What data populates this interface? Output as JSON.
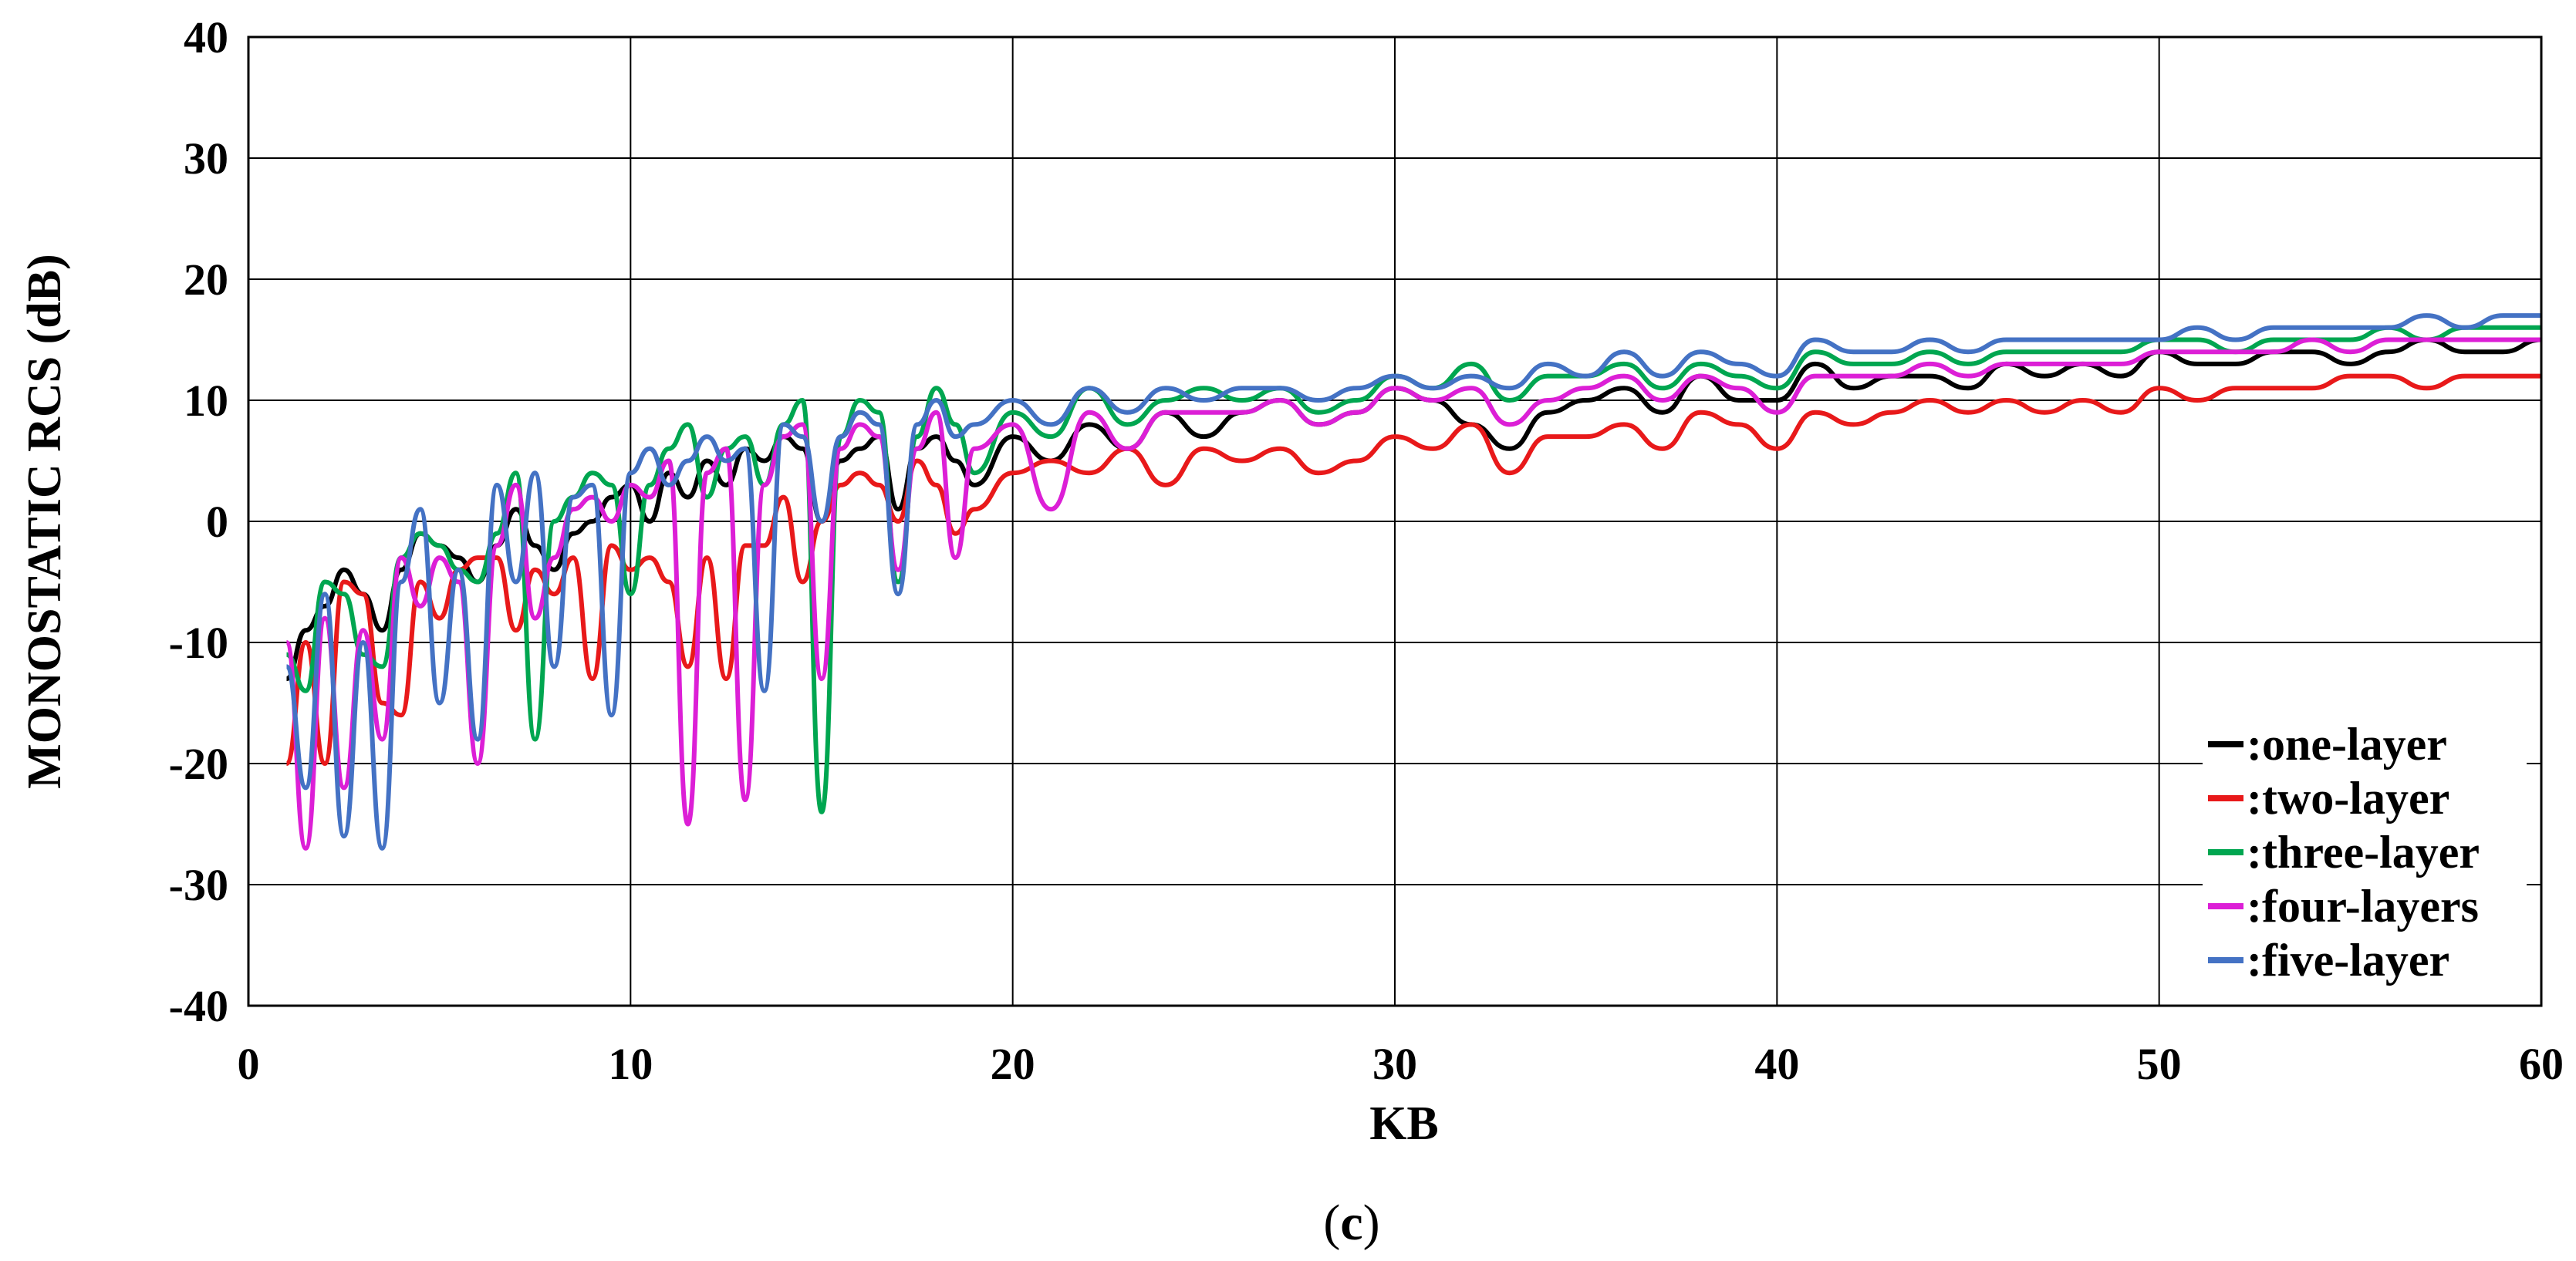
{
  "chart_data": {
    "type": "line",
    "title": "",
    "xlabel": "KB",
    "ylabel": "MONOSTATIC RCS (dB)",
    "xlim": [
      0,
      60
    ],
    "ylim": [
      -40,
      40
    ],
    "xticks": [
      0,
      10,
      20,
      30,
      40,
      50,
      60
    ],
    "yticks": [
      -40,
      -30,
      -20,
      -10,
      0,
      10,
      20,
      30,
      40
    ],
    "grid": true,
    "legend_position": "bottom-right",
    "caption": {
      "open": "(",
      "letter": "c",
      "close": ")"
    },
    "series": [
      {
        "name": ":one-layer",
        "color": "#000000",
        "x": [
          1,
          1.5,
          2,
          2.5,
          3,
          3.5,
          4,
          4.5,
          5,
          5.5,
          6,
          6.5,
          7,
          7.5,
          8,
          8.5,
          9,
          9.5,
          10,
          10.5,
          11,
          11.5,
          12,
          12.5,
          13,
          13.5,
          14,
          14.5,
          15,
          15.5,
          16,
          16.5,
          17,
          17.5,
          18,
          18.5,
          19,
          20,
          21,
          22,
          23,
          24,
          25,
          26,
          27,
          28,
          29,
          30,
          31,
          32,
          33,
          34,
          35,
          36,
          37,
          38,
          39,
          40,
          41,
          42,
          43,
          44,
          45,
          46,
          47,
          48,
          49,
          50,
          51,
          52,
          53,
          54,
          55,
          56,
          57,
          58,
          59,
          60
        ],
        "y": [
          -13,
          -9,
          -7,
          -4,
          -6,
          -9,
          -4,
          -1,
          -2,
          -3,
          -5,
          -2,
          1,
          -2,
          -4,
          -1,
          0,
          2,
          3,
          0,
          4,
          2,
          5,
          3,
          6,
          5,
          7,
          6,
          0,
          5,
          6,
          7,
          1,
          6,
          7,
          5,
          3,
          7,
          5,
          8,
          6,
          9,
          7,
          9,
          10,
          8,
          9,
          11,
          10,
          8,
          6,
          9,
          10,
          11,
          9,
          12,
          10,
          10,
          13,
          11,
          12,
          12,
          11,
          13,
          12,
          13,
          12,
          14,
          13,
          13,
          14,
          14,
          13,
          14,
          15,
          14,
          14,
          15
        ]
      },
      {
        "name": ":two-layer",
        "color": "#e8191a",
        "x": [
          1,
          1.5,
          2,
          2.5,
          3,
          3.5,
          4,
          4.5,
          5,
          5.5,
          6,
          6.5,
          7,
          7.5,
          8,
          8.5,
          9,
          9.5,
          10,
          10.5,
          11,
          11.5,
          12,
          12.5,
          13,
          13.5,
          14,
          14.5,
          15,
          15.5,
          16,
          16.5,
          17,
          17.5,
          18,
          18.5,
          19,
          20,
          21,
          22,
          23,
          24,
          25,
          26,
          27,
          28,
          29,
          30,
          31,
          32,
          33,
          34,
          35,
          36,
          37,
          38,
          39,
          40,
          41,
          42,
          43,
          44,
          45,
          46,
          47,
          48,
          49,
          50,
          51,
          52,
          53,
          54,
          55,
          56,
          57,
          58,
          59,
          60
        ],
        "y": [
          -20,
          -10,
          -20,
          -5,
          -6,
          -15,
          -16,
          -5,
          -8,
          -4,
          -3,
          -3,
          -9,
          -4,
          -6,
          -3,
          -13,
          -2,
          -4,
          -3,
          -5,
          -12,
          -3,
          -13,
          -2,
          -2,
          2,
          -5,
          0,
          3,
          4,
          3,
          0,
          5,
          3,
          -1,
          1,
          4,
          5,
          4,
          6,
          3,
          6,
          5,
          6,
          4,
          5,
          7,
          6,
          8,
          4,
          7,
          7,
          8,
          6,
          9,
          8,
          6,
          9,
          8,
          9,
          10,
          9,
          10,
          9,
          10,
          9,
          11,
          10,
          11,
          11,
          11,
          12,
          12,
          11,
          12,
          12,
          12
        ]
      },
      {
        "name": ":three-layer",
        "color": "#00a650",
        "x": [
          1,
          1.5,
          2,
          2.5,
          3,
          3.5,
          4,
          4.5,
          5,
          5.5,
          6,
          6.5,
          7,
          7.5,
          8,
          8.5,
          9,
          9.5,
          10,
          10.5,
          11,
          11.5,
          12,
          12.5,
          13,
          13.5,
          14,
          14.5,
          15,
          15.5,
          16,
          16.5,
          17,
          17.5,
          18,
          18.5,
          19,
          20,
          21,
          22,
          23,
          24,
          25,
          26,
          27,
          28,
          29,
          30,
          31,
          32,
          33,
          34,
          35,
          36,
          37,
          38,
          39,
          40,
          41,
          42,
          43,
          44,
          45,
          46,
          47,
          48,
          49,
          50,
          51,
          52,
          53,
          54,
          55,
          56,
          57,
          58,
          59,
          60
        ],
        "y": [
          -11,
          -14,
          -5,
          -6,
          -11,
          -12,
          -3,
          -1,
          -2,
          -4,
          -5,
          -1,
          4,
          -18,
          0,
          2,
          4,
          3,
          -6,
          3,
          6,
          8,
          2,
          6,
          7,
          3,
          8,
          10,
          -24,
          7,
          10,
          9,
          -5,
          7,
          11,
          8,
          4,
          9,
          7,
          11,
          8,
          10,
          11,
          10,
          11,
          9,
          10,
          12,
          11,
          13,
          10,
          12,
          12,
          13,
          11,
          13,
          12,
          11,
          14,
          13,
          13,
          14,
          13,
          14,
          14,
          14,
          14,
          15,
          15,
          14,
          15,
          15,
          15,
          16,
          15,
          16,
          16,
          16
        ]
      },
      {
        "name": ":four-layers",
        "color": "#dc1fd6",
        "x": [
          1,
          1.5,
          2,
          2.5,
          3,
          3.5,
          4,
          4.5,
          5,
          5.5,
          6,
          6.5,
          7,
          7.5,
          8,
          8.5,
          9,
          9.5,
          10,
          10.5,
          11,
          11.5,
          12,
          12.5,
          13,
          13.5,
          14,
          14.5,
          15,
          15.5,
          16,
          16.5,
          17,
          17.5,
          18,
          18.5,
          19,
          20,
          21,
          22,
          23,
          24,
          25,
          26,
          27,
          28,
          29,
          30,
          31,
          32,
          33,
          34,
          35,
          36,
          37,
          38,
          39,
          40,
          41,
          42,
          43,
          44,
          45,
          46,
          47,
          48,
          49,
          50,
          51,
          52,
          53,
          54,
          55,
          56,
          57,
          58,
          59,
          60
        ],
        "y": [
          -10,
          -27,
          -8,
          -22,
          -9,
          -18,
          -3,
          -7,
          -3,
          -5,
          -20,
          -2,
          3,
          -8,
          -3,
          1,
          2,
          0,
          3,
          2,
          5,
          -25,
          4,
          6,
          -23,
          3,
          7,
          8,
          -13,
          6,
          8,
          7,
          -4,
          6,
          9,
          -3,
          6,
          8,
          1,
          9,
          6,
          9,
          9,
          9,
          10,
          8,
          9,
          11,
          10,
          11,
          8,
          10,
          11,
          12,
          10,
          12,
          11,
          9,
          12,
          12,
          12,
          13,
          12,
          13,
          13,
          13,
          13,
          14,
          14,
          14,
          14,
          15,
          14,
          15,
          15,
          15,
          15,
          15
        ]
      },
      {
        "name": ":five-layer",
        "color": "#4472c4",
        "x": [
          1,
          1.5,
          2,
          2.5,
          3,
          3.5,
          4,
          4.5,
          5,
          5.5,
          6,
          6.5,
          7,
          7.5,
          8,
          8.5,
          9,
          9.5,
          10,
          10.5,
          11,
          11.5,
          12,
          12.5,
          13,
          13.5,
          14,
          14.5,
          15,
          15.5,
          16,
          16.5,
          17,
          17.5,
          18,
          18.5,
          19,
          20,
          21,
          22,
          23,
          24,
          25,
          26,
          27,
          28,
          29,
          30,
          31,
          32,
          33,
          34,
          35,
          36,
          37,
          38,
          39,
          40,
          41,
          42,
          43,
          44,
          45,
          46,
          47,
          48,
          49,
          50,
          51,
          52,
          53,
          54,
          55,
          56,
          57,
          58,
          59,
          60
        ],
        "y": [
          -12,
          -22,
          -6,
          -26,
          -10,
          -27,
          -5,
          1,
          -15,
          -4,
          -18,
          3,
          -5,
          4,
          -12,
          2,
          3,
          -16,
          4,
          6,
          3,
          5,
          7,
          5,
          6,
          -14,
          8,
          7,
          0,
          7,
          9,
          8,
          -6,
          8,
          10,
          7,
          8,
          10,
          8,
          11,
          9,
          11,
          10,
          11,
          11,
          10,
          11,
          12,
          11,
          12,
          11,
          13,
          12,
          14,
          12,
          14,
          13,
          12,
          15,
          14,
          14,
          15,
          14,
          15,
          15,
          15,
          15,
          15,
          16,
          15,
          16,
          16,
          16,
          16,
          17,
          16,
          17,
          17
        ]
      }
    ]
  }
}
